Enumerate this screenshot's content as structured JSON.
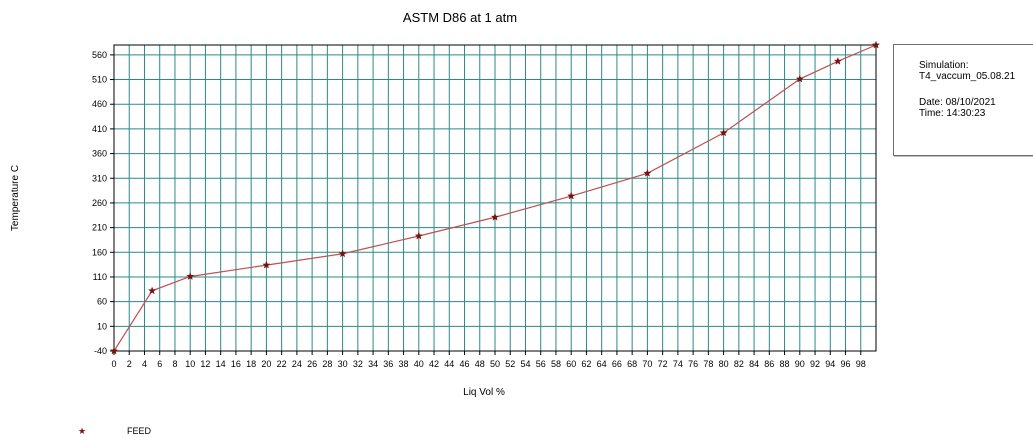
{
  "chart_data": {
    "type": "line",
    "title": "ASTM D86 at 1 atm",
    "xlabel": "Liq Vol %",
    "ylabel": "Temperature C",
    "xlim": [
      0,
      100
    ],
    "ylim": [
      -40,
      580
    ],
    "x_ticks": [
      "0",
      "2",
      "4",
      "6",
      "8",
      "10",
      "12",
      "14",
      "16",
      "18",
      "20",
      "22",
      "24",
      "26",
      "28",
      "30",
      "32",
      "34",
      "36",
      "38",
      "40",
      "42",
      "44",
      "46",
      "48",
      "50",
      "52",
      "54",
      "56",
      "58",
      "60",
      "62",
      "64",
      "66",
      "68",
      "70",
      "72",
      "74",
      "76",
      "78",
      "80",
      "82",
      "84",
      "86",
      "88",
      "90",
      "92",
      "94",
      "96",
      "98"
    ],
    "y_ticks": [
      "560",
      "510",
      "460",
      "410",
      "360",
      "310",
      "260",
      "210",
      "160",
      "110",
      "60",
      "10",
      "-40"
    ],
    "grid": true,
    "legend": "bottom-left",
    "series": [
      {
        "name": "FEED",
        "color": "#c0504d",
        "marker_color": "#7a1010",
        "x": [
          0,
          5,
          10,
          20,
          30,
          40,
          50,
          60,
          70,
          80,
          90,
          95,
          100
        ],
        "y": [
          -40,
          82,
          111,
          134,
          157,
          193,
          231,
          274,
          320,
          402,
          511,
          547,
          580
        ]
      }
    ]
  },
  "info": {
    "simulation_label": "Simulation:",
    "simulation_name": "T4_vaccum_05.08.21",
    "date": "Date: 08/10/2021",
    "time": "Time: 14:30:23"
  },
  "legend": {
    "marker": "★",
    "label": "FEED"
  },
  "colors": {
    "grid": "#2a8a8a",
    "line": "#c0504d",
    "marker": "#7a1010",
    "frame": "#000000"
  }
}
